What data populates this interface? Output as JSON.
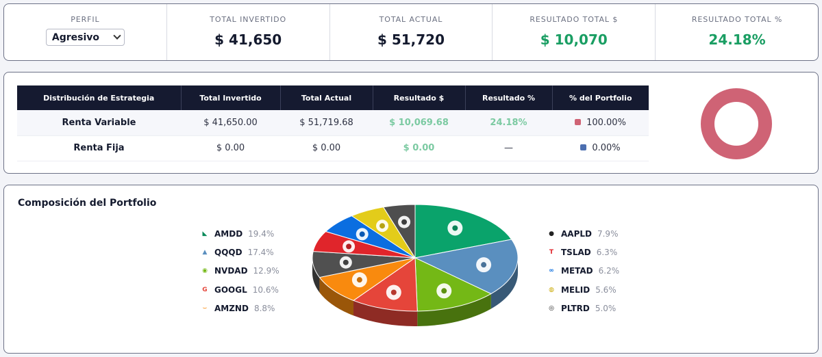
{
  "kpis": {
    "profile": {
      "label": "PERFIL",
      "selected": "Agresivo"
    },
    "invested": {
      "label": "TOTAL INVERTIDO",
      "value": "$ 41,650"
    },
    "current": {
      "label": "TOTAL ACTUAL",
      "value": "$ 51,720"
    },
    "result_amount": {
      "label": "RESULTADO TOTAL $",
      "value": "$ 10,070"
    },
    "result_pct": {
      "label": "RESULTADO TOTAL %",
      "value": "24.18%"
    }
  },
  "strategy": {
    "headers": [
      "Distribución de Estrategia",
      "Total Invertido",
      "Total Actual",
      "Resultado $",
      "Resultado %",
      "% del Portfolio"
    ],
    "rows": [
      {
        "name": "Renta Variable",
        "invested": "$ 41,650.00",
        "current": "$ 51,719.68",
        "result": "$ 10,069.68",
        "result_pct": "24.18%",
        "portfolio_pct": "100.00%",
        "color": "#cf6375"
      },
      {
        "name": "Renta Fija",
        "invested": "$ 0.00",
        "current": "$ 0.00",
        "result": "$ 0.00",
        "result_pct": "—",
        "portfolio_pct": "0.00%",
        "color": "#4c6fb0"
      }
    ],
    "donut": {
      "share": 1.0,
      "color": "#cf6375"
    }
  },
  "composition": {
    "title": "Composición del Portfolio",
    "legend_left": [
      {
        "ticker": "AMDD",
        "pct": "19.4%",
        "icon": "amd-icon"
      },
      {
        "ticker": "QQQD",
        "pct": "17.4%",
        "icon": "invesco-icon"
      },
      {
        "ticker": "NVDAD",
        "pct": "12.9%",
        "icon": "nvidia-icon"
      },
      {
        "ticker": "GOOGL",
        "pct": "10.6%",
        "icon": "google-icon"
      },
      {
        "ticker": "AMZND",
        "pct": "8.8%",
        "icon": "amazon-icon"
      }
    ],
    "legend_right": [
      {
        "ticker": "AAPLD",
        "pct": "7.9%",
        "icon": "apple-icon"
      },
      {
        "ticker": "TSLAD",
        "pct": "6.3%",
        "icon": "tesla-icon"
      },
      {
        "ticker": "METAD",
        "pct": "6.2%",
        "icon": "meta-icon"
      },
      {
        "ticker": "MELID",
        "pct": "5.6%",
        "icon": "mercadolibre-icon"
      },
      {
        "ticker": "PLTRD",
        "pct": "5.0%",
        "icon": "palantir-icon"
      }
    ],
    "slices": [
      {
        "ticker": "AMDD",
        "value": 19.4,
        "color": "#0aa36b"
      },
      {
        "ticker": "QQQD",
        "value": 17.4,
        "color": "#5a8fbf"
      },
      {
        "ticker": "NVDAD",
        "value": 12.9,
        "color": "#74b816"
      },
      {
        "ticker": "GOOGL",
        "value": 10.6,
        "color": "#e5453a"
      },
      {
        "ticker": "AMZND",
        "value": 8.8,
        "color": "#f98a0e"
      },
      {
        "ticker": "AAPLD",
        "value": 7.9,
        "color": "#505050"
      },
      {
        "ticker": "TSLAD",
        "value": 6.3,
        "color": "#e0252b"
      },
      {
        "ticker": "METAD",
        "value": 6.2,
        "color": "#0b6ee0"
      },
      {
        "ticker": "MELID",
        "value": 5.6,
        "color": "#e3cc1a"
      },
      {
        "ticker": "PLTRD",
        "value": 5.0,
        "color": "#4e4e4e"
      }
    ]
  }
}
